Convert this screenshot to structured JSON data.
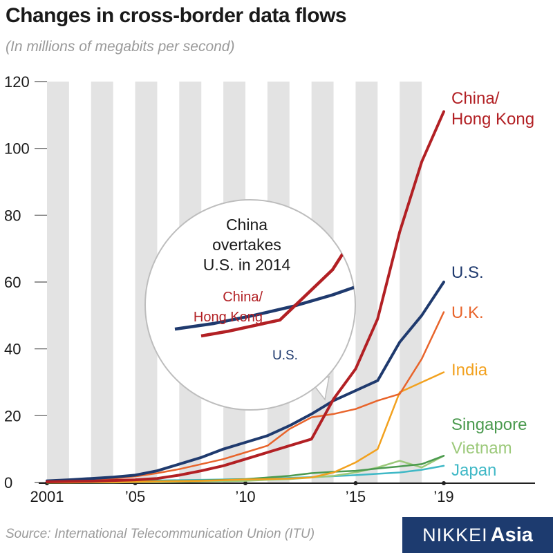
{
  "title": "Changes in cross-border data flows",
  "subtitle": "(In millions of megabits per second)",
  "source": "Source: International Telecommunication Union (ITU)",
  "logo": {
    "brand": "NIKKEI",
    "region": "Asia"
  },
  "callout": {
    "heading": [
      "China/",
      "overtakes",
      "U.S. in 2014"
    ],
    "china_label": [
      "China/",
      "Hong Kong"
    ],
    "us_label": "U.S.",
    "heading_full": [
      "China",
      "overtakes",
      "U.S. in 2014"
    ]
  },
  "chart_data": {
    "type": "line",
    "title": "Changes in cross-border data flows",
    "subtitle": "(In millions of megabits per second)",
    "ylim": [
      0,
      120
    ],
    "xlim": [
      2001,
      2019
    ],
    "yticks": [
      0,
      20,
      40,
      60,
      80,
      100,
      120
    ],
    "ytick_labels": [
      "0",
      "20",
      "40",
      "60",
      "80",
      "100",
      "120"
    ],
    "xticks": [
      2001,
      2005,
      2010,
      2015,
      2019
    ],
    "xtick_labels": [
      "2001",
      "’05",
      "’10",
      "’15",
      "’19"
    ],
    "grid": "alternating vertical bands",
    "x": [
      2001,
      2002,
      2003,
      2004,
      2005,
      2006,
      2007,
      2008,
      2009,
      2010,
      2011,
      2012,
      2013,
      2014,
      2015,
      2016,
      2017,
      2018,
      2019
    ],
    "series": [
      {
        "name": "China/ Hong Kong",
        "label_lines": [
          "China/",
          "Hong Kong"
        ],
        "color": "#b22024",
        "values": [
          0.2,
          0.3,
          0.4,
          0.6,
          0.8,
          1.2,
          2.2,
          3.5,
          5.0,
          7.0,
          9.0,
          11.0,
          13.0,
          25.0,
          34.0,
          49.0,
          75.0,
          96.0,
          111.0
        ]
      },
      {
        "name": "U.S.",
        "label_lines": [
          "U.S."
        ],
        "color": "#1f3a6e",
        "values": [
          0.5,
          0.8,
          1.2,
          1.6,
          2.2,
          3.5,
          5.5,
          7.5,
          10.0,
          12.0,
          14.0,
          17.0,
          20.5,
          24.5,
          27.5,
          30.5,
          42.0,
          50.0,
          60.0
        ]
      },
      {
        "name": "U.K.",
        "label_lines": [
          "U.K."
        ],
        "color": "#e8642b",
        "values": [
          0.3,
          0.5,
          0.8,
          1.2,
          1.8,
          2.8,
          4.0,
          5.5,
          7.0,
          9.0,
          11.0,
          16.0,
          19.5,
          20.5,
          22.0,
          24.5,
          26.5,
          37.0,
          51.0
        ]
      },
      {
        "name": "India",
        "label_lines": [
          "India"
        ],
        "color": "#f2a11e",
        "values": [
          0.0,
          0.0,
          0.1,
          0.1,
          0.2,
          0.3,
          0.4,
          0.5,
          0.7,
          0.9,
          1.0,
          1.2,
          1.5,
          3.0,
          6.0,
          10.0,
          27.0,
          30.0,
          33.0
        ]
      },
      {
        "name": "Singapore",
        "label_lines": [
          "Singapore"
        ],
        "color": "#4b9a4f",
        "values": [
          0.0,
          0.1,
          0.1,
          0.2,
          0.3,
          0.4,
          0.5,
          0.6,
          0.8,
          1.0,
          1.5,
          2.0,
          2.8,
          3.2,
          3.5,
          4.2,
          4.8,
          5.5,
          8.0
        ]
      },
      {
        "name": "Vietnam",
        "label_lines": [
          "Vietnam"
        ],
        "color": "#9cc97a",
        "values": [
          0.0,
          0.0,
          0.0,
          0.0,
          0.1,
          0.1,
          0.2,
          0.3,
          0.4,
          0.5,
          0.8,
          1.0,
          1.5,
          2.0,
          3.0,
          4.5,
          6.5,
          4.5,
          8.0
        ]
      },
      {
        "name": "Japan",
        "label_lines": [
          "Japan"
        ],
        "color": "#3fb8c6",
        "values": [
          0.2,
          0.3,
          0.3,
          0.4,
          0.5,
          0.6,
          0.7,
          0.8,
          0.9,
          1.0,
          1.2,
          1.4,
          1.6,
          1.9,
          2.2,
          2.6,
          3.0,
          3.8,
          5.0
        ]
      }
    ],
    "inset": {
      "china": [
        {
          "x": 2007.0,
          "y": 30.0
        },
        {
          "x": 2008.0,
          "y": 32.0
        },
        {
          "x": 2009.0,
          "y": 34.5
        },
        {
          "x": 2010.0,
          "y": 37.0
        },
        {
          "x": 2011.0,
          "y": 48.0
        },
        {
          "x": 2012.0,
          "y": 59.0
        },
        {
          "x": 2013.0,
          "y": 77.0
        }
      ],
      "us": [
        {
          "x": 2006.0,
          "y": 33.0
        },
        {
          "x": 2007.5,
          "y": 35.5
        },
        {
          "x": 2009.0,
          "y": 39.0
        },
        {
          "x": 2010.5,
          "y": 43.0
        },
        {
          "x": 2012.0,
          "y": 48.0
        },
        {
          "x": 2013.0,
          "y": 52.0
        },
        {
          "x": 2013.8,
          "y": 55.0
        },
        {
          "x": 2014.3,
          "y": 61.0
        }
      ]
    }
  }
}
